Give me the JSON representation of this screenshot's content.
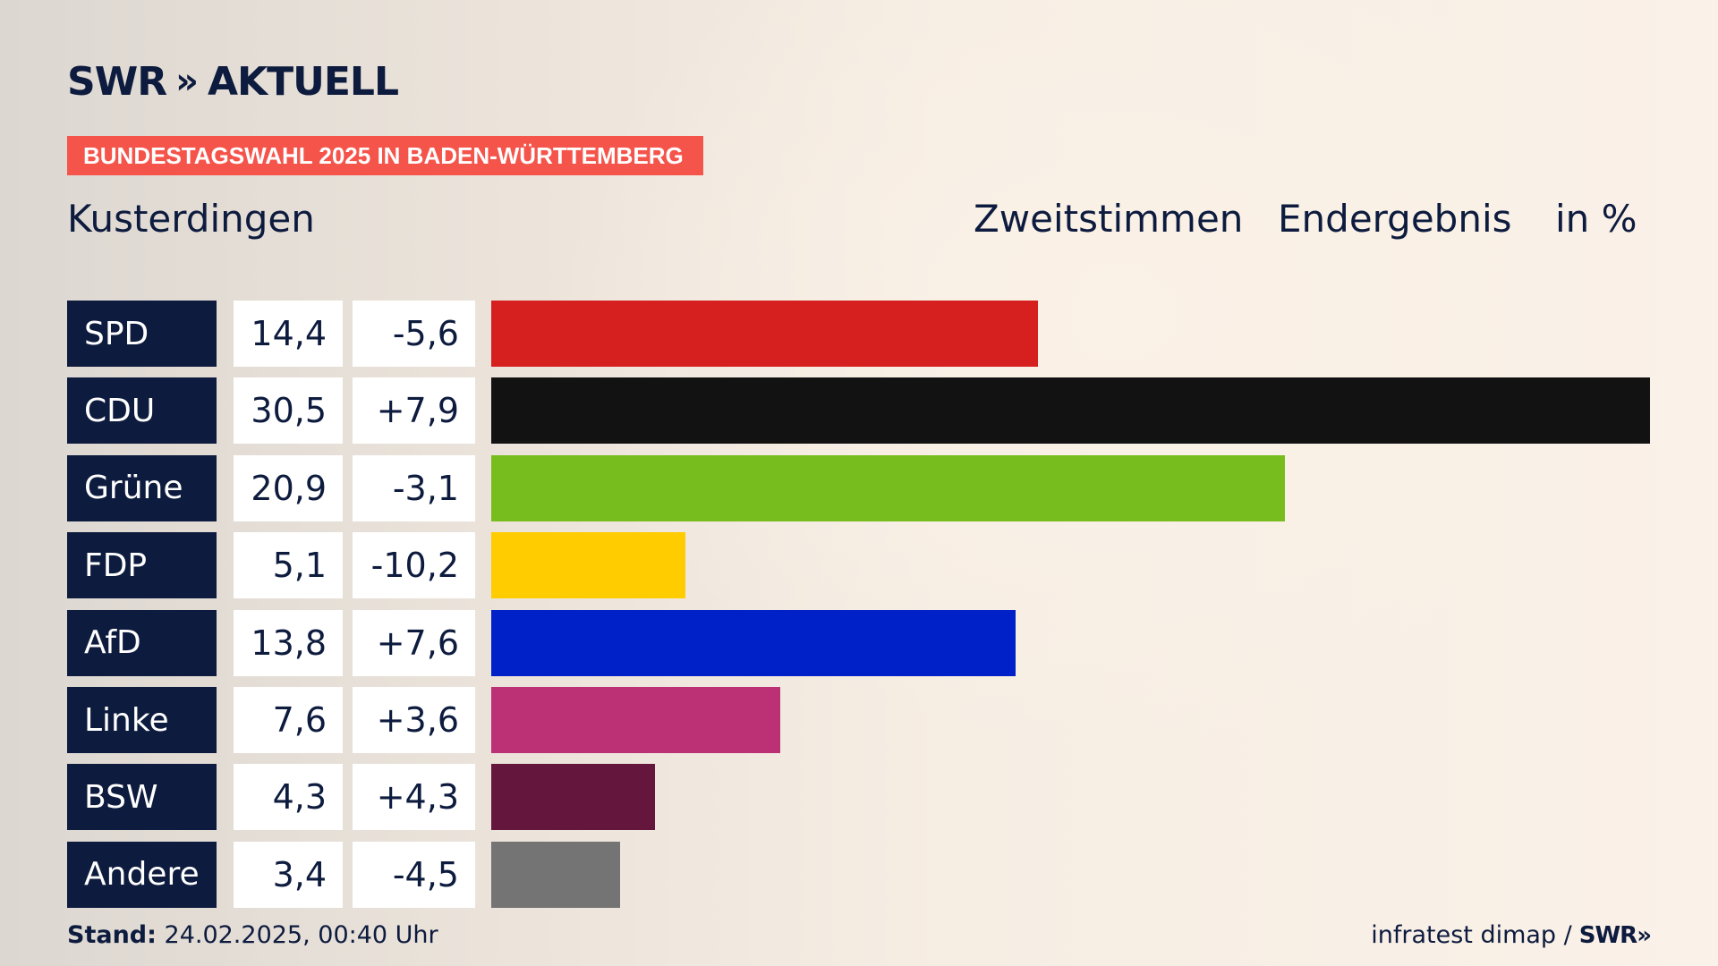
{
  "brand": {
    "name": "SWR",
    "chevrons": "»",
    "product": "AKTUELL"
  },
  "tag": "BUNDESTAGSWAHL 2025 IN BADEN-WÜRTTEMBERG",
  "place": "Kusterdingen",
  "headers": {
    "vote": "Zweitstimmen",
    "status": "Endergebnis",
    "unit": "in %"
  },
  "chart_data": {
    "type": "bar",
    "orientation": "horizontal",
    "categories": [
      "SPD",
      "CDU",
      "Grüne",
      "FDP",
      "AfD",
      "Linke",
      "BSW",
      "Andere"
    ],
    "values": [
      14.4,
      30.5,
      20.9,
      5.1,
      13.8,
      7.6,
      4.3,
      3.4
    ],
    "value_labels": [
      "14,4",
      "30,5",
      "20,9",
      "5,1",
      "13,8",
      "7,6",
      "4,3",
      "3,4"
    ],
    "diffs": [
      -5.6,
      7.9,
      -3.1,
      -10.2,
      7.6,
      3.6,
      4.3,
      -4.5
    ],
    "diff_labels": [
      "-5,6",
      "+7,9",
      "-3,1",
      "-10,2",
      "+7,6",
      "+3,6",
      "+4,3",
      "-4,5"
    ],
    "colors": [
      "#d62020",
      "#121212",
      "#78bd1e",
      "#ffcc00",
      "#0021c8",
      "#bc3175",
      "#65163d",
      "#747474"
    ],
    "xlim": [
      0,
      30.5
    ]
  },
  "footer": {
    "stand_label": "Stand:",
    "stand_value": "24.02.2025, 00:40 Uhr",
    "source": "infratest dimap /",
    "source_brand": "SWR",
    "source_chevrons": "»"
  }
}
